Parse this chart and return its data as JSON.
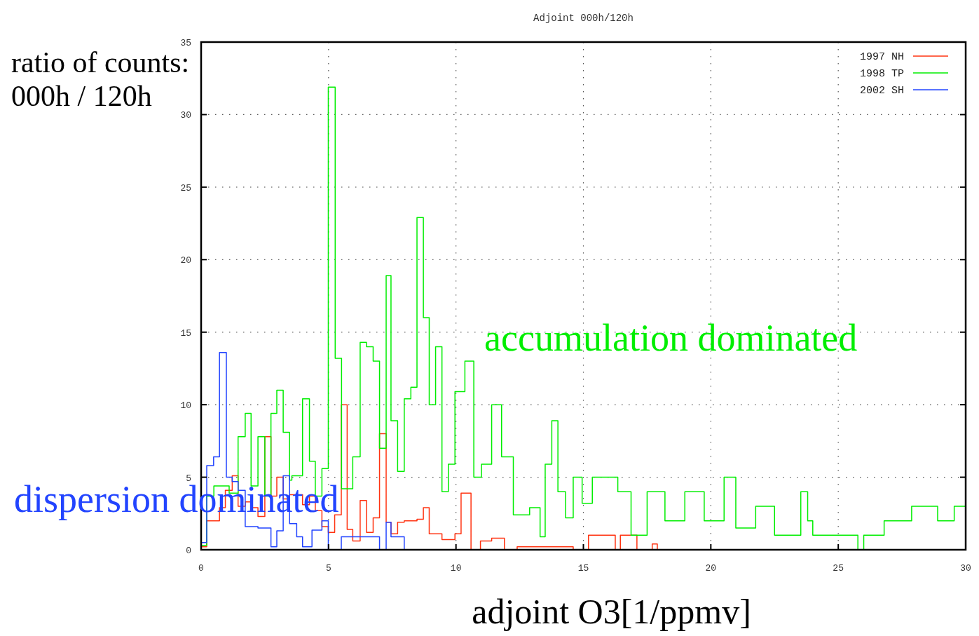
{
  "chart_data": {
    "type": "step",
    "title": "Adjoint 000h/120h",
    "xlabel": "adjoint O3[1/ppmv]",
    "ylabel": "ratio of counts:\n000h / 120h",
    "annotations": [
      "accumulation dominated",
      "dispersion dominated"
    ],
    "xlim": [
      0,
      30
    ],
    "ylim": [
      0,
      35
    ],
    "xticks": [
      0,
      5,
      10,
      15,
      20,
      25,
      30
    ],
    "yticks": [
      0,
      5,
      10,
      15,
      20,
      25,
      30,
      35
    ],
    "grid": true,
    "legend": "top right",
    "series": [
      {
        "name": "1997 NH",
        "color": "#ff3311",
        "x": [
          0,
          0.22,
          0.72,
          0.95,
          1.22,
          1.45,
          1.73,
          1.96,
          2.23,
          2.5,
          2.74,
          2.97,
          3.22,
          3.47,
          3.98,
          4.25,
          4.48,
          4.74,
          4.99,
          5.24,
          5.5,
          5.73,
          5.95,
          6.24,
          6.49,
          6.75,
          7.0,
          7.26,
          7.45,
          7.71,
          7.97,
          8.47,
          8.72,
          8.95,
          9.45,
          9.96,
          10.2,
          10.59,
          10.96,
          11.4,
          11.9,
          12.4,
          14.6,
          15.2,
          16.25,
          16.45,
          17.1,
          17.7,
          17.9
        ],
        "values": [
          0.2,
          2.0,
          2.9,
          4.1,
          5.1,
          3.0,
          3.3,
          2.9,
          2.3,
          7.8,
          3.7,
          5.0,
          3.5,
          3.8,
          3.1,
          3.7,
          2.7,
          1.6,
          1.2,
          2.4,
          10.0,
          1.4,
          0.6,
          3.4,
          1.2,
          2.2,
          8.0,
          1.9,
          1.1,
          1.9,
          2.0,
          2.1,
          2.9,
          1.1,
          0.7,
          1.1,
          3.9,
          0,
          0.6,
          0.8,
          0,
          0.2,
          0,
          1.0,
          0,
          1.0,
          0,
          0.4,
          0
        ]
      },
      {
        "name": "1998 TP",
        "color": "#00ee00",
        "x": [
          0,
          0.22,
          0.5,
          1.1,
          1.45,
          1.73,
          1.96,
          2.23,
          2.5,
          2.74,
          2.97,
          3.22,
          3.47,
          3.56,
          3.98,
          4.25,
          4.48,
          4.74,
          4.99,
          5.26,
          5.51,
          5.95,
          6.24,
          6.49,
          6.75,
          7.0,
          7.26,
          7.45,
          7.71,
          7.97,
          8.23,
          8.47,
          8.72,
          8.95,
          9.2,
          9.45,
          9.7,
          9.96,
          10.35,
          10.7,
          11.0,
          11.4,
          11.79,
          12.25,
          12.89,
          13.3,
          13.5,
          13.76,
          14.0,
          14.3,
          14.6,
          14.95,
          15.35,
          16.35,
          16.87,
          17.5,
          18.2,
          18.98,
          19.74,
          20.52,
          20.98,
          21.76,
          22.5,
          23.53,
          23.8,
          24.0,
          25.77,
          26.0,
          26.8,
          27.88,
          28.9,
          29.55,
          30
        ],
        "values": [
          0.3,
          3.7,
          4.4,
          3.9,
          7.8,
          9.4,
          4.4,
          7.8,
          3.7,
          9.4,
          11.0,
          8.1,
          4.8,
          5.1,
          10.4,
          6.1,
          3.7,
          5.6,
          31.9,
          13.2,
          4.2,
          6.4,
          14.3,
          14.0,
          13.0,
          7.0,
          18.9,
          8.9,
          5.4,
          10.4,
          11.2,
          22.9,
          16.0,
          10.0,
          14.0,
          4.0,
          5.9,
          10.9,
          13.0,
          5.0,
          5.9,
          10.0,
          6.4,
          2.4,
          2.9,
          0.9,
          5.9,
          8.9,
          4.0,
          2.2,
          5.0,
          3.2,
          5.0,
          4.0,
          1.0,
          4.0,
          2.0,
          4.0,
          2.0,
          5.0,
          1.5,
          3.0,
          1.0,
          4.0,
          2.0,
          1.0,
          0,
          1.0,
          2.0,
          3.0,
          2.0,
          3.0,
          3.0
        ]
      },
      {
        "name": "2002 SH",
        "color": "#2244ff",
        "x": [
          0,
          0.22,
          0.49,
          0.72,
          0.99,
          1.22,
          1.45,
          1.73,
          2.23,
          2.74,
          2.97,
          3.22,
          3.47,
          3.75,
          3.98,
          4.35,
          4.74,
          4.99,
          5.5,
          7.0,
          7.26,
          7.45,
          7.97
        ],
        "values": [
          0.5,
          5.8,
          6.4,
          13.6,
          5.0,
          4.7,
          4.1,
          1.6,
          1.5,
          0.2,
          1.3,
          5.1,
          1.8,
          0.9,
          0.2,
          1.35,
          2.0,
          0,
          0.9,
          0,
          1.9,
          0.9,
          0
        ]
      }
    ]
  }
}
